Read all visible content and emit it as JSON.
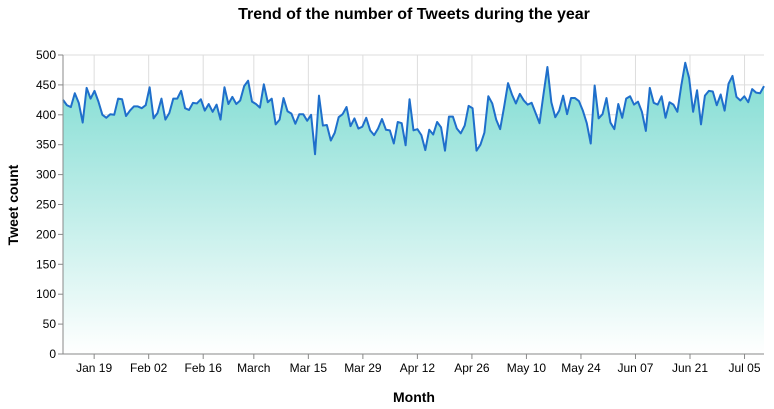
{
  "chart_data": {
    "type": "area",
    "title": "Trend of the number of Tweets during the year",
    "xlabel": "Month",
    "ylabel": "Tweet count",
    "ylim": [
      0,
      500
    ],
    "yticks": [
      0,
      50,
      100,
      150,
      200,
      250,
      300,
      350,
      400,
      450,
      500
    ],
    "x_start": "2023-01-11",
    "x_end": "2023-07-10",
    "x_ticks": [
      {
        "date": "2023-01-19",
        "label": "Jan 19"
      },
      {
        "date": "2023-02-02",
        "label": "Feb 02"
      },
      {
        "date": "2023-02-16",
        "label": "Feb 16"
      },
      {
        "date": "2023-03-01",
        "label": "March"
      },
      {
        "date": "2023-03-15",
        "label": "Mar 15"
      },
      {
        "date": "2023-03-29",
        "label": "Mar 29"
      },
      {
        "date": "2023-04-12",
        "label": "Apr 12"
      },
      {
        "date": "2023-04-26",
        "label": "Apr 26"
      },
      {
        "date": "2023-05-10",
        "label": "May 10"
      },
      {
        "date": "2023-05-24",
        "label": "May 24"
      },
      {
        "date": "2023-06-07",
        "label": "Jun 07"
      },
      {
        "date": "2023-06-21",
        "label": "Jun 21"
      },
      {
        "date": "2023-07-05",
        "label": "Jul 05"
      }
    ],
    "grid": true,
    "line_color": "#1f6fcb",
    "fill_top_color": "#7fdcd2",
    "fill_bottom_color": "#ffffff",
    "values": [
      425,
      416,
      413,
      436,
      420,
      387,
      445,
      427,
      440,
      422,
      400,
      395,
      401,
      400,
      427,
      426,
      398,
      407,
      414,
      414,
      411,
      416,
      446,
      394,
      403,
      427,
      392,
      403,
      427,
      427,
      440,
      411,
      408,
      420,
      419,
      426,
      407,
      418,
      405,
      417,
      392,
      446,
      418,
      430,
      418,
      424,
      448,
      457,
      422,
      418,
      412,
      451,
      421,
      427,
      384,
      392,
      428,
      406,
      402,
      385,
      401,
      401,
      390,
      400,
      334,
      432,
      382,
      383,
      357,
      370,
      396,
      401,
      413,
      381,
      394,
      377,
      380,
      395,
      374,
      366,
      377,
      393,
      375,
      374,
      352,
      388,
      386,
      349,
      426,
      374,
      376,
      366,
      341,
      375,
      367,
      388,
      379,
      340,
      397,
      397,
      377,
      369,
      382,
      415,
      411,
      340,
      350,
      370,
      431,
      419,
      392,
      376,
      413,
      453,
      434,
      419,
      435,
      424,
      417,
      420,
      403,
      386,
      434,
      480,
      421,
      396,
      407,
      432,
      401,
      428,
      428,
      423,
      407,
      386,
      352,
      449,
      394,
      401,
      428,
      387,
      376,
      418,
      395,
      427,
      431,
      417,
      422,
      405,
      373,
      445,
      420,
      417,
      431,
      395,
      421,
      417,
      405,
      449,
      487,
      461,
      405,
      441,
      384,
      432,
      440,
      439,
      416,
      434,
      407,
      452,
      465,
      430,
      424,
      431,
      421,
      443,
      437,
      436,
      448
    ]
  }
}
